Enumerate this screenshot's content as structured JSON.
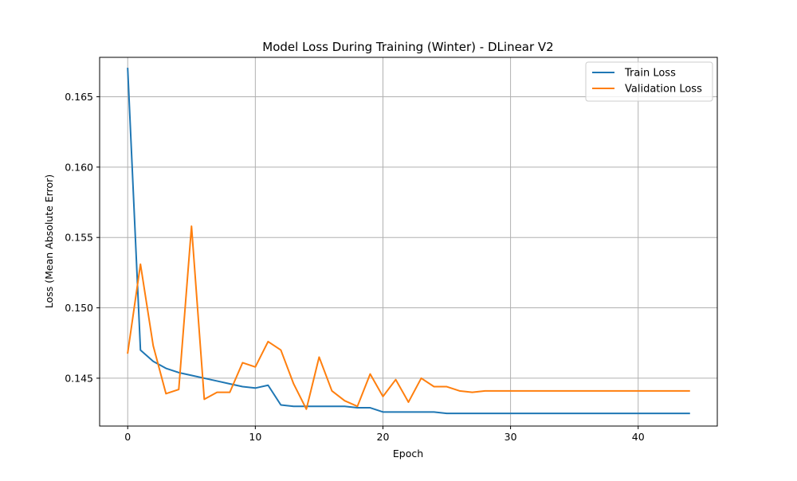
{
  "chart_data": {
    "type": "line",
    "title": "Model Loss During Training (Winter) - DLinear V2",
    "xlabel": "Epoch",
    "ylabel": "Loss (Mean Absolute Error)",
    "xlim": [
      -2.2,
      46.2
    ],
    "ylim": [
      0.1416,
      0.1678
    ],
    "xticks": [
      0,
      10,
      20,
      30,
      40
    ],
    "xtick_labels": [
      "0",
      "10",
      "20",
      "30",
      "40"
    ],
    "yticks": [
      0.145,
      0.15,
      0.155,
      0.16,
      0.165
    ],
    "ytick_labels": [
      "0.145",
      "0.150",
      "0.155",
      "0.160",
      "0.165"
    ],
    "grid": true,
    "legend_position": "top-right",
    "x": [
      0,
      1,
      2,
      3,
      4,
      5,
      6,
      7,
      8,
      9,
      10,
      11,
      12,
      13,
      14,
      15,
      16,
      17,
      18,
      19,
      20,
      21,
      22,
      23,
      24,
      25,
      26,
      27,
      28,
      29,
      30,
      31,
      32,
      33,
      34,
      35,
      36,
      37,
      38,
      39,
      40,
      41,
      42,
      43,
      44
    ],
    "series": [
      {
        "name": "Train Loss",
        "color": "#1f77b4",
        "values": [
          0.167,
          0.147,
          0.1462,
          0.1457,
          0.1454,
          0.1452,
          0.145,
          0.1448,
          0.1446,
          0.1444,
          0.1443,
          0.1445,
          0.1431,
          0.143,
          0.143,
          0.143,
          0.143,
          0.143,
          0.1429,
          0.1429,
          0.1426,
          0.1426,
          0.1426,
          0.1426,
          0.1426,
          0.1425,
          0.1425,
          0.1425,
          0.1425,
          0.1425,
          0.1425,
          0.1425,
          0.1425,
          0.1425,
          0.1425,
          0.1425,
          0.1425,
          0.1425,
          0.1425,
          0.1425,
          0.1425,
          0.1425,
          0.1425,
          0.1425,
          0.1425
        ]
      },
      {
        "name": "Validation Loss",
        "color": "#ff7f0e",
        "values": [
          0.1468,
          0.1531,
          0.1473,
          0.1439,
          0.1442,
          0.1558,
          0.1435,
          0.144,
          0.144,
          0.1461,
          0.1458,
          0.1476,
          0.147,
          0.1446,
          0.1428,
          0.1465,
          0.1441,
          0.1434,
          0.143,
          0.1453,
          0.1437,
          0.1449,
          0.1433,
          0.145,
          0.1444,
          0.1444,
          0.1441,
          0.144,
          0.1441,
          0.1441,
          0.1441,
          0.1441,
          0.1441,
          0.1441,
          0.1441,
          0.1441,
          0.1441,
          0.1441,
          0.1441,
          0.1441,
          0.1441,
          0.1441,
          0.1441,
          0.1441,
          0.1441
        ]
      }
    ]
  }
}
